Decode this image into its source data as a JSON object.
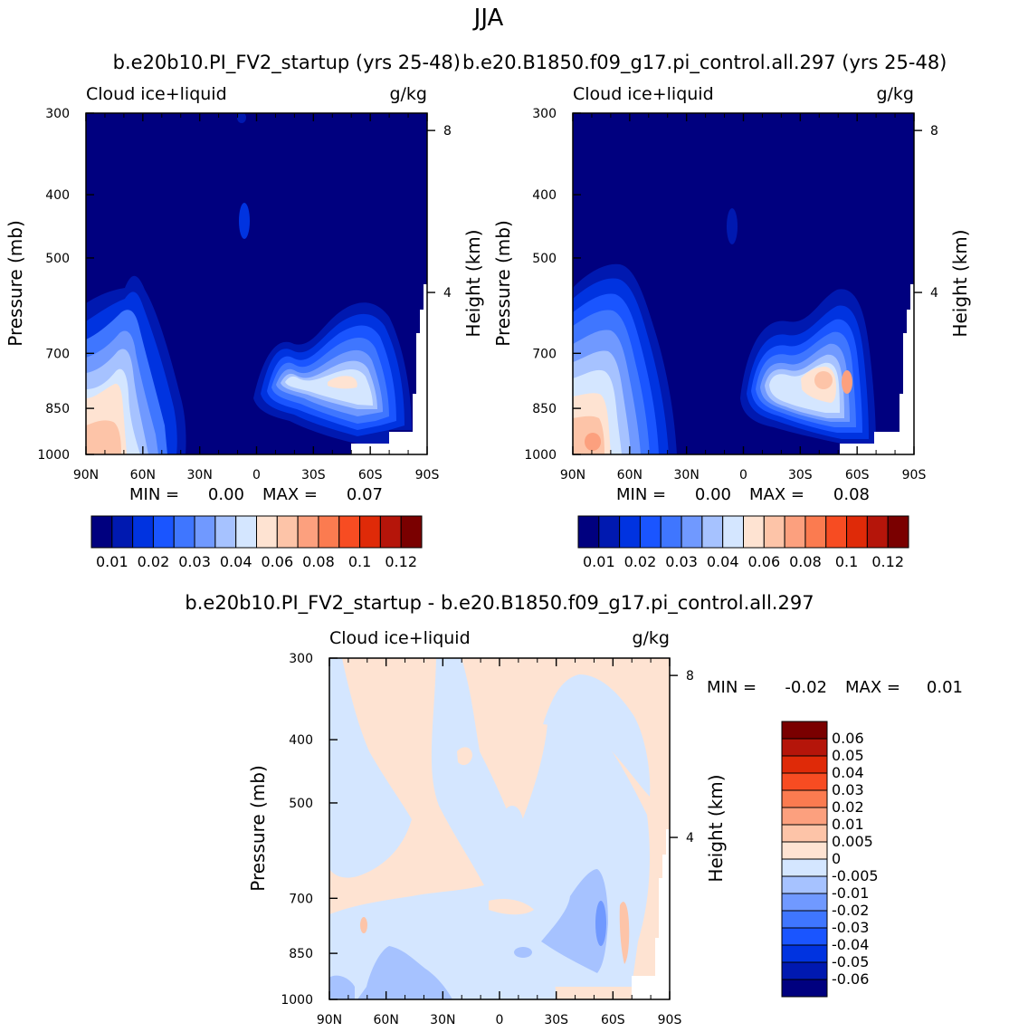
{
  "figure": {
    "season": "JJA",
    "top_title_left": "b.e20b10.PI_FV2_startup (yrs 25-48)",
    "top_title_right": "b.e20.B1850.f09_g17.pi_control.all.297 (yrs 25-48)",
    "diff_title": "b.e20b10.PI_FV2_startup - b.e20.B1850.f09_g17.pi_control.all.297"
  },
  "colors": {
    "abs_scale": [
      "#00007f",
      "#0019b0",
      "#0033e0",
      "#1a55ff",
      "#3f76ff",
      "#7099ff",
      "#a6c2ff",
      "#d4e6ff",
      "#fee3d2",
      "#fdc4a8",
      "#fca07e",
      "#fb7b50",
      "#f74c22",
      "#df2a08",
      "#b5150a",
      "#7a0000"
    ],
    "diff_scale": [
      "#00007f",
      "#0019b0",
      "#0033e0",
      "#1a55ff",
      "#3f76ff",
      "#7099ff",
      "#a6c2ff",
      "#d4e6ff",
      "#fee3d2",
      "#fdc4a8",
      "#fca07e",
      "#fb7b50",
      "#f74c22",
      "#df2a08",
      "#b5150a",
      "#7a0000"
    ]
  },
  "chart_data": [
    {
      "type": "heatmap",
      "panel": "left",
      "left_label": "Cloud ice+liquid",
      "units": "g/kg",
      "ylabel": "Pressure (mb)",
      "y2label": "Height (km)",
      "x_ticks": [
        "90N",
        "60N",
        "30N",
        "0",
        "30S",
        "60S",
        "90S"
      ],
      "y_ticks": [
        "300",
        "400",
        "500",
        "700",
        "850",
        "1000"
      ],
      "y_tick_values": [
        300,
        400,
        500,
        700,
        850,
        1000
      ],
      "y2_ticks": [
        "8",
        "4"
      ],
      "y2_tick_values": [
        8,
        4
      ],
      "ylim": [
        1000,
        300
      ],
      "xlim": [
        90,
        -90
      ],
      "min_label": "MIN =",
      "min_value": "0.00",
      "max_label": "MAX =",
      "max_value": "0.07",
      "levels": [
        "0.01",
        "0.02",
        "0.03",
        "0.04",
        "0.06",
        "0.08",
        "0.1",
        "0.12"
      ]
    },
    {
      "type": "heatmap",
      "panel": "right",
      "left_label": "Cloud ice+liquid",
      "units": "g/kg",
      "ylabel": "Pressure (mb)",
      "y2label": "Height (km)",
      "x_ticks": [
        "90N",
        "60N",
        "30N",
        "0",
        "30S",
        "60S",
        "90S"
      ],
      "y_ticks": [
        "300",
        "400",
        "500",
        "700",
        "850",
        "1000"
      ],
      "y_tick_values": [
        300,
        400,
        500,
        700,
        850,
        1000
      ],
      "y2_ticks": [
        "8",
        "4"
      ],
      "y2_tick_values": [
        8,
        4
      ],
      "ylim": [
        1000,
        300
      ],
      "xlim": [
        90,
        -90
      ],
      "min_label": "MIN =",
      "min_value": "0.00",
      "max_label": "MAX =",
      "max_value": "0.08",
      "levels": [
        "0.01",
        "0.02",
        "0.03",
        "0.04",
        "0.06",
        "0.08",
        "0.1",
        "0.12"
      ]
    },
    {
      "type": "heatmap",
      "panel": "diff",
      "left_label": "Cloud ice+liquid",
      "units": "g/kg",
      "ylabel": "Pressure (mb)",
      "y2label": "Height (km)",
      "x_ticks": [
        "90N",
        "60N",
        "30N",
        "0",
        "30S",
        "60S",
        "90S"
      ],
      "y_ticks": [
        "300",
        "400",
        "500",
        "700",
        "850",
        "1000"
      ],
      "y_tick_values": [
        300,
        400,
        500,
        700,
        850,
        1000
      ],
      "y2_ticks": [
        "8",
        "4"
      ],
      "y2_tick_values": [
        8,
        4
      ],
      "ylim": [
        1000,
        300
      ],
      "xlim": [
        90,
        -90
      ],
      "min_label": "MIN =",
      "min_value": "-0.02",
      "max_label": "MAX =",
      "max_value": "0.01",
      "levels": [
        "0.06",
        "0.05",
        "0.04",
        "0.03",
        "0.02",
        "0.01",
        "0.005",
        "0",
        "-0.005",
        "-0.01",
        "-0.02",
        "-0.03",
        "-0.04",
        "-0.05",
        "-0.06"
      ]
    }
  ]
}
